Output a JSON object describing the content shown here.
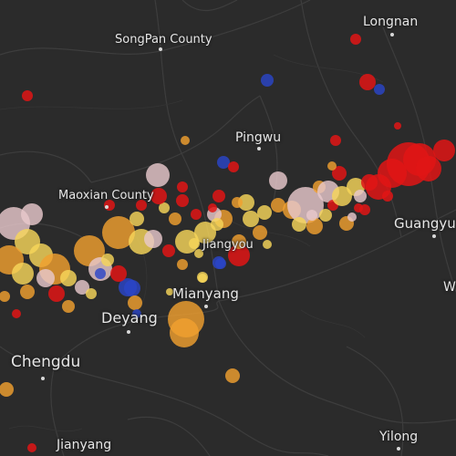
{
  "map": {
    "background": "#2b2b2b",
    "road_color": "#3f3f3f",
    "label_color": "#e6e6e6"
  },
  "places": {
    "longnan": "Longnan",
    "songpan": "SongPan County",
    "pingwu": "Pingwu",
    "maoxian": "Maoxian County",
    "guangyuan": "Guangyu",
    "jiangyou": "Jiangyou",
    "mianyang": "Mianyang",
    "deyang": "Deyang",
    "chengdu": "Chengdu",
    "jianyang": "Jianyang",
    "yilong": "Yilong",
    "edge_w": "W"
  },
  "legend_colors": {
    "strong": "#e01515",
    "medium": "#f0a030",
    "light": "#f7d55a",
    "pale": "#e8c8cc",
    "deep": "#2b45c8"
  }
}
